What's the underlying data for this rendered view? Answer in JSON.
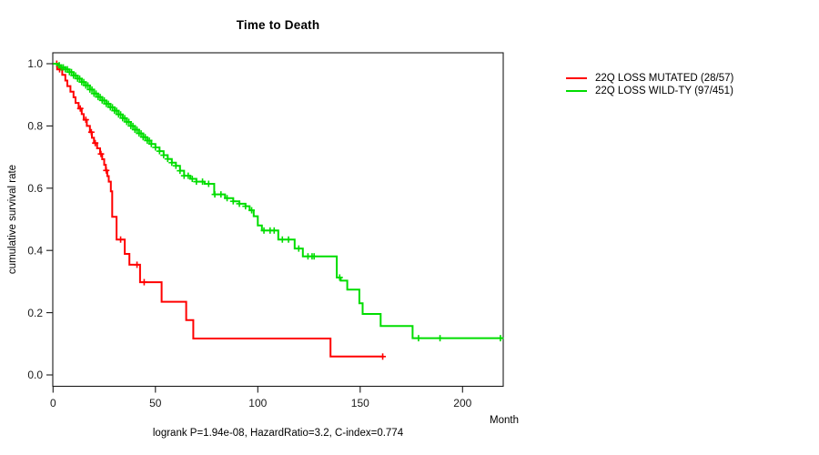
{
  "chart_data": {
    "type": "line",
    "subtype": "kaplan-meier-step",
    "title": "Time to Death",
    "xlabel": "Month",
    "ylabel": "cumulative survival rate",
    "annotation": "logrank P=1.94e-08, HazardRatio=3.2, C-index=0.774",
    "xlim": [
      0,
      220
    ],
    "ylim": [
      0,
      1
    ],
    "xticks": [
      0,
      50,
      100,
      150,
      200
    ],
    "yticks": [
      0.0,
      0.2,
      0.4,
      0.6,
      0.8,
      1.0
    ],
    "grid": false,
    "legend_position": "right-outside",
    "axis_color": "#1a1a1a",
    "series": [
      {
        "name": "22Q LOSS MUTATED (28/57)",
        "color": "#ff0000",
        "steps": [
          [
            0,
            1.0
          ],
          [
            2,
            0.982
          ],
          [
            4.5,
            0.964
          ],
          [
            6,
            0.946
          ],
          [
            7,
            0.928
          ],
          [
            8.5,
            0.91
          ],
          [
            10,
            0.892
          ],
          [
            11,
            0.874
          ],
          [
            12.5,
            0.856
          ],
          [
            14,
            0.838
          ],
          [
            15,
            0.82
          ],
          [
            16.5,
            0.8
          ],
          [
            18,
            0.78
          ],
          [
            19,
            0.762
          ],
          [
            20,
            0.745
          ],
          [
            21.5,
            0.728
          ],
          [
            23,
            0.71
          ],
          [
            24,
            0.693
          ],
          [
            25,
            0.675
          ],
          [
            25.8,
            0.657
          ],
          [
            26.5,
            0.639
          ],
          [
            27.2,
            0.621
          ],
          [
            28.2,
            0.59
          ],
          [
            28.9,
            0.508
          ],
          [
            31,
            0.435
          ],
          [
            35,
            0.389
          ],
          [
            37.3,
            0.354
          ],
          [
            42.5,
            0.298
          ],
          [
            53,
            0.235
          ],
          [
            65,
            0.176
          ],
          [
            68.5,
            0.117
          ],
          [
            135.5,
            0.059
          ]
        ],
        "end_month": 161.5,
        "censor_months": [
          1.8,
          3.2,
          13.3,
          16,
          18.7,
          20.6,
          23.4,
          26,
          33,
          41,
          44.5,
          161
        ]
      },
      {
        "name": "22Q LOSS WILD-TY (97/451)",
        "color": "#00dd00",
        "steps": [
          [
            0,
            1.0
          ],
          [
            2,
            0.995
          ],
          [
            4,
            0.988
          ],
          [
            6,
            0.982
          ],
          [
            8,
            0.973
          ],
          [
            10,
            0.962
          ],
          [
            12,
            0.952
          ],
          [
            14,
            0.941
          ],
          [
            16,
            0.93
          ],
          [
            18,
            0.917
          ],
          [
            20,
            0.904
          ],
          [
            22,
            0.893
          ],
          [
            24,
            0.882
          ],
          [
            26,
            0.871
          ],
          [
            28,
            0.86
          ],
          [
            30,
            0.849
          ],
          [
            32,
            0.837
          ],
          [
            34,
            0.825
          ],
          [
            36,
            0.813
          ],
          [
            38,
            0.8
          ],
          [
            40,
            0.788
          ],
          [
            42,
            0.776
          ],
          [
            44,
            0.764
          ],
          [
            46,
            0.753
          ],
          [
            48,
            0.742
          ],
          [
            50,
            0.731
          ],
          [
            52,
            0.719
          ],
          [
            54,
            0.706
          ],
          [
            56,
            0.694
          ],
          [
            58,
            0.682
          ],
          [
            60,
            0.672
          ],
          [
            62,
            0.656
          ],
          [
            64,
            0.64
          ],
          [
            67,
            0.63
          ],
          [
            70,
            0.621
          ],
          [
            74,
            0.614
          ],
          [
            78.7,
            0.58
          ],
          [
            84,
            0.568
          ],
          [
            88,
            0.558
          ],
          [
            91,
            0.55
          ],
          [
            94,
            0.542
          ],
          [
            96,
            0.529
          ],
          [
            98,
            0.51
          ],
          [
            100,
            0.48
          ],
          [
            102,
            0.464
          ],
          [
            110,
            0.435
          ],
          [
            118,
            0.406
          ],
          [
            122,
            0.381
          ],
          [
            138.6,
            0.313
          ],
          [
            140.5,
            0.303
          ],
          [
            143.7,
            0.274
          ],
          [
            149.6,
            0.23
          ],
          [
            151.2,
            0.196
          ],
          [
            160,
            0.157
          ],
          [
            175.6,
            0.118
          ]
        ],
        "end_month": 219.8,
        "censor_months": [
          3,
          4,
          5,
          6,
          7,
          8,
          9,
          10,
          11,
          12,
          13,
          14,
          15,
          16,
          17,
          18,
          19,
          20,
          21,
          22,
          23,
          24,
          25,
          26,
          27,
          28,
          29,
          30,
          31,
          32,
          33,
          34,
          35,
          36,
          37,
          38,
          39,
          40,
          41,
          42,
          43,
          44,
          45,
          46,
          47,
          48,
          50,
          52,
          54,
          56,
          58,
          60,
          62,
          64,
          66,
          68,
          70,
          73,
          76,
          79,
          82,
          85,
          88,
          91,
          94,
          97,
          103,
          106,
          108,
          112,
          115,
          120,
          124.5,
          126.5,
          127.5,
          140,
          178.5,
          189,
          218.5
        ]
      }
    ]
  }
}
